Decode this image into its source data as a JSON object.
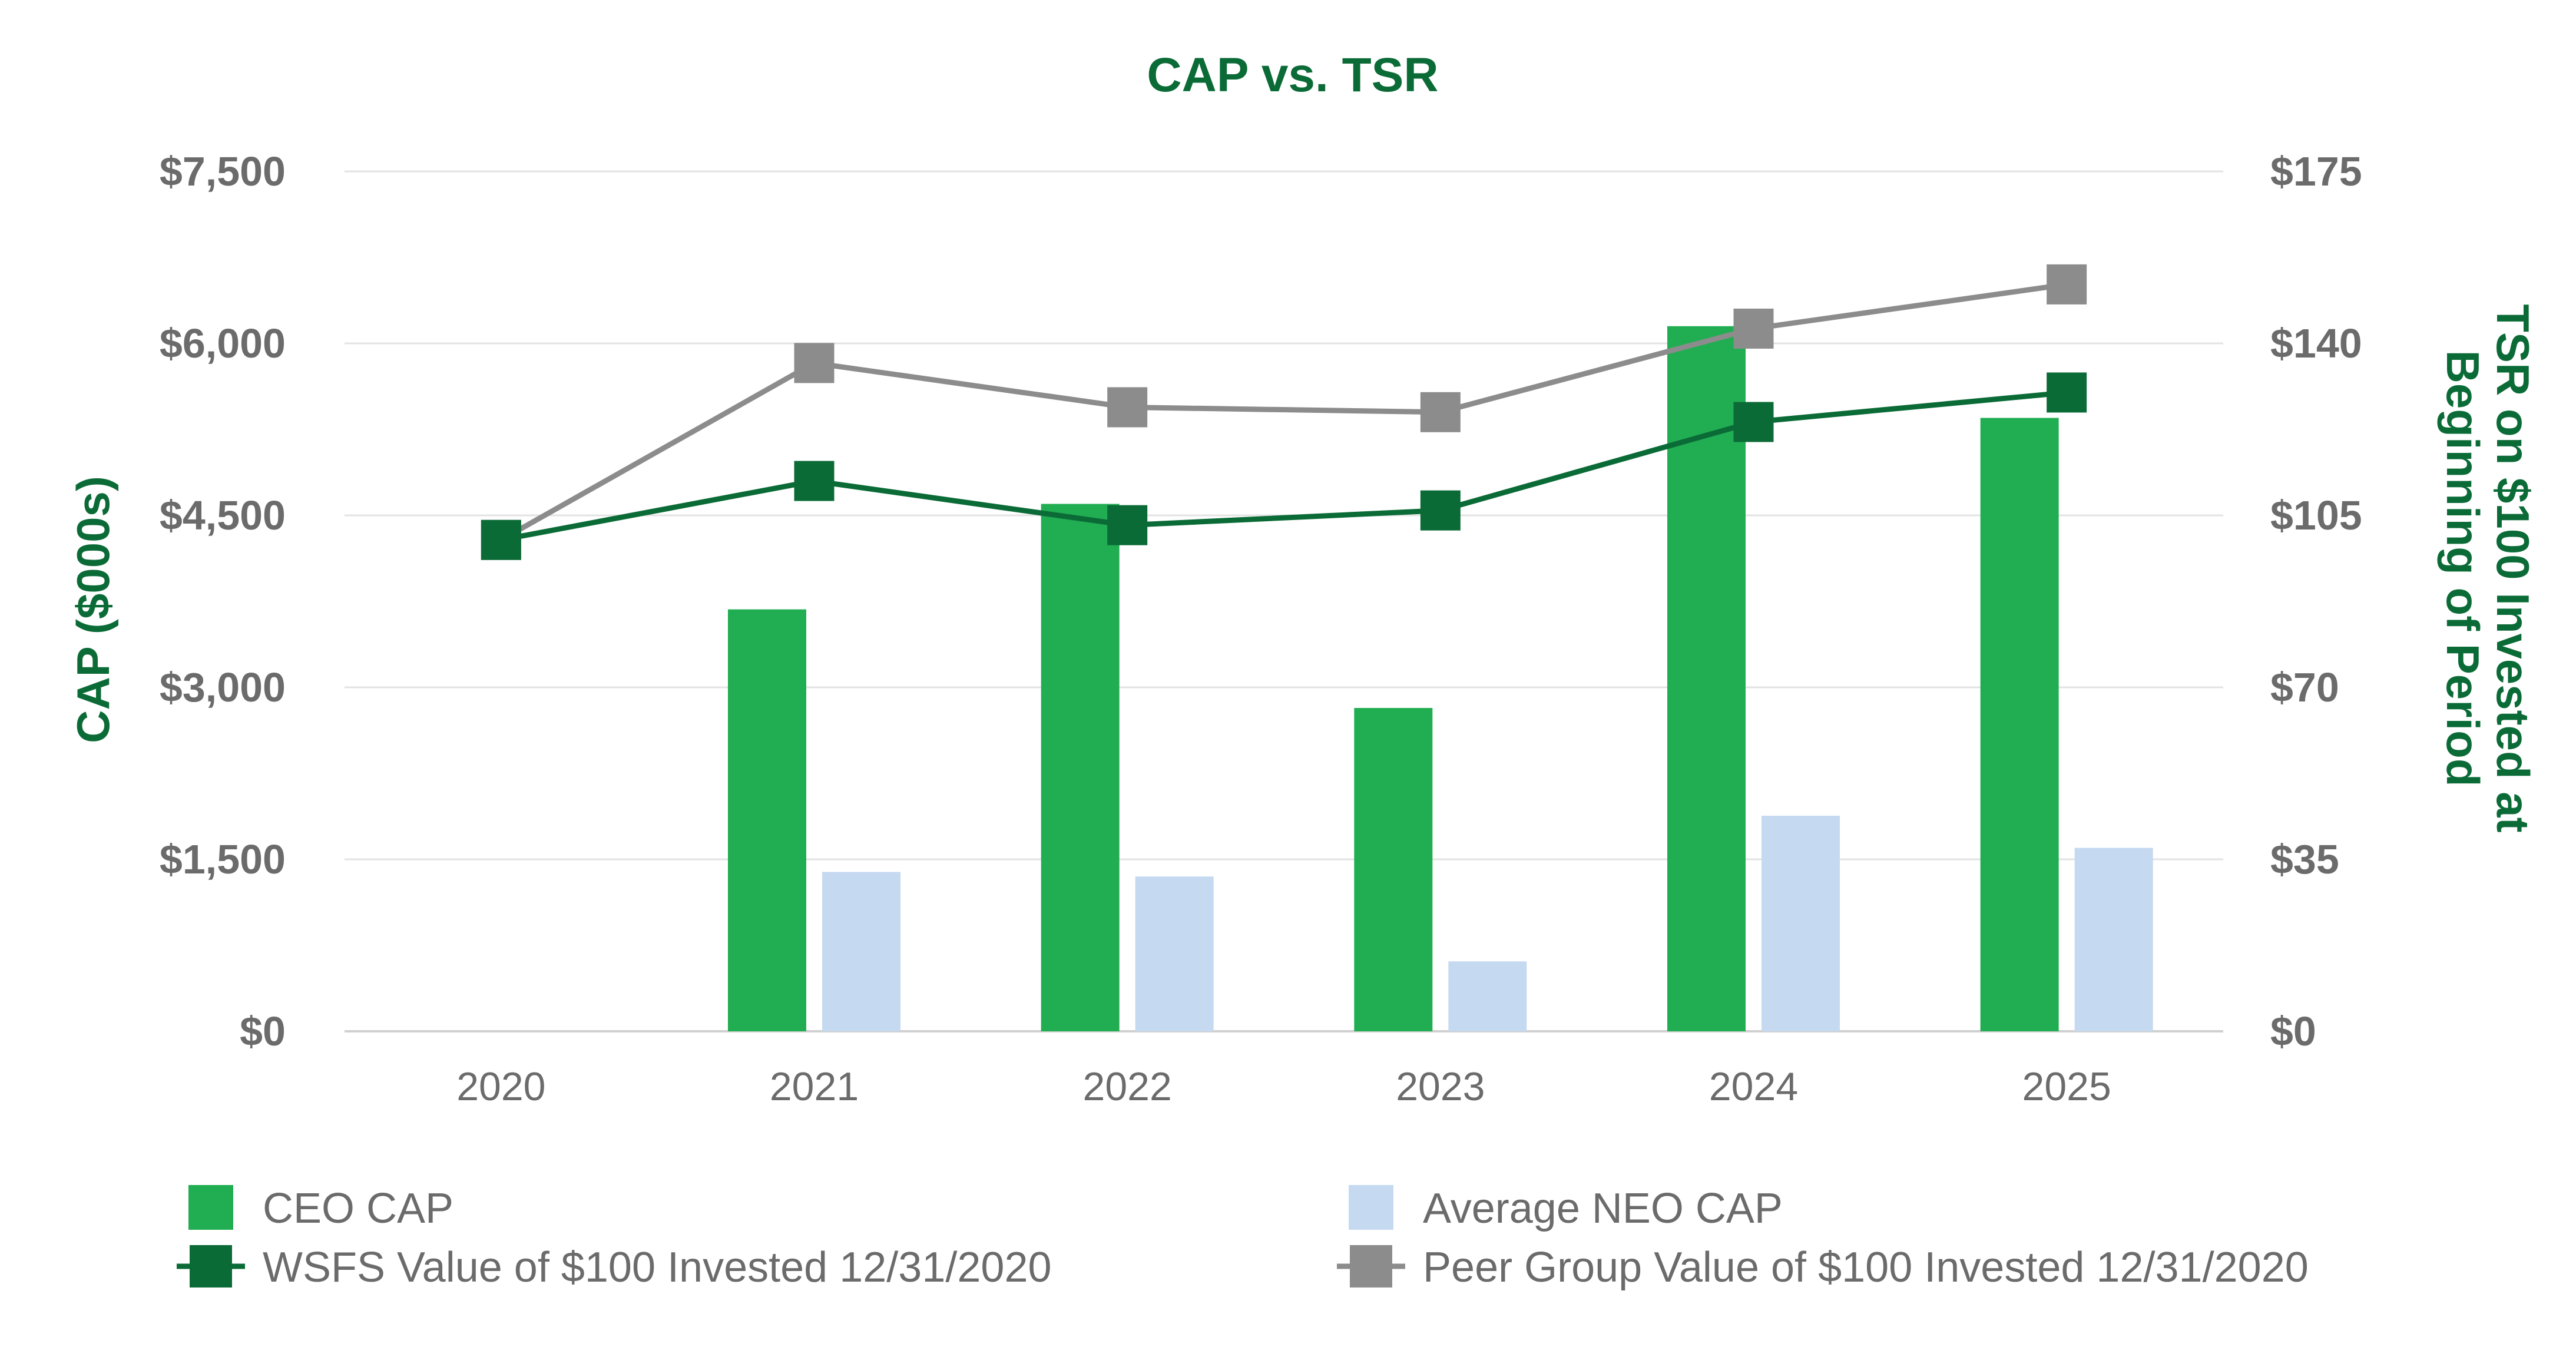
{
  "chart_data": {
    "type": "bar",
    "title": "CAP vs. TSR",
    "categories": [
      "2020",
      "2021",
      "2022",
      "2023",
      "2024",
      "2025"
    ],
    "y_left": {
      "label": "CAP ($000s)",
      "lim": [
        0,
        7500
      ],
      "ticks": [
        0,
        1500,
        3000,
        4500,
        6000,
        7500
      ],
      "tick_labels": [
        "$0",
        "$1,500",
        "$3,000",
        "$4,500",
        "$6,000",
        "$7,500"
      ]
    },
    "y_right": {
      "label_lines": [
        "TSR on $100 Invested at",
        "Beginning of Period"
      ],
      "lim": [
        0,
        175
      ],
      "ticks": [
        0,
        35,
        70,
        105,
        140,
        175
      ],
      "tick_labels": [
        "$0",
        "$35",
        "$70",
        "$105",
        "$140",
        "$175"
      ]
    },
    "bar_series": [
      {
        "name": "CEO CAP",
        "color": "#21ad52",
        "values": [
          null,
          3680,
          4600,
          2820,
          6150,
          5350
        ]
      },
      {
        "name": "Average NEO CAP",
        "color": "#c5d9f1",
        "values": [
          null,
          1390,
          1350,
          610,
          1880,
          1600
        ]
      }
    ],
    "line_series": [
      {
        "name": "WSFS Value of $100 Invested 12/31/2020",
        "color": "#0b6b37",
        "values": [
          100,
          112,
          103,
          106,
          124,
          130
        ]
      },
      {
        "name": "Peer Group Value of $100 Invested 12/31/2020",
        "color": "#8c8c8c",
        "values": [
          100,
          136,
          127,
          126,
          143,
          152
        ]
      }
    ],
    "grid": true,
    "legend_position": "bottom"
  }
}
